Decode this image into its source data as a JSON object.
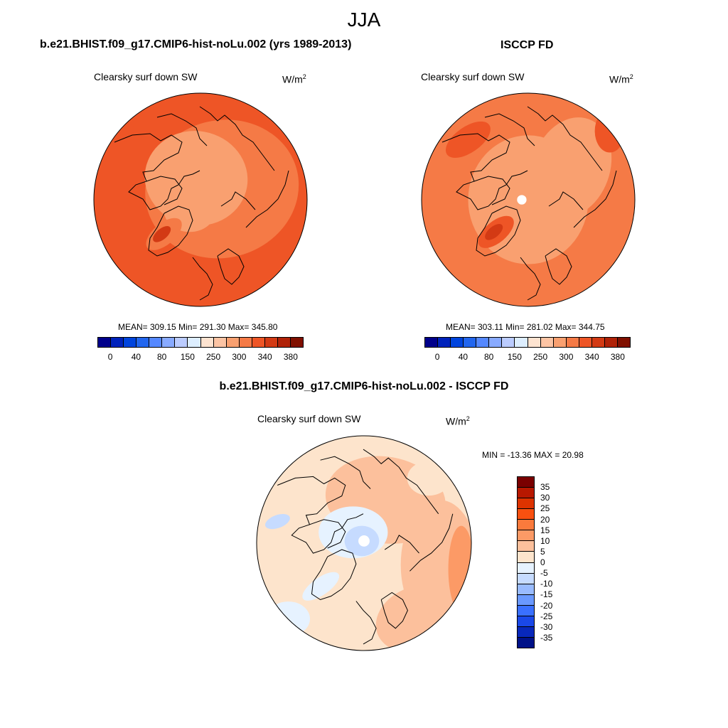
{
  "season": "JJA",
  "panels": [
    {
      "title": "b.e21.BHIST.f09_g17.CMIP6-hist-noLu.002 (yrs 1989-2013)",
      "variable": "Clearsky surf down SW",
      "units": "W/m",
      "units_sup": "2",
      "stats": "MEAN= 309.15  Min= 291.30  Max= 345.80"
    },
    {
      "title": "ISCCP FD",
      "variable": "Clearsky surf down SW",
      "units": "W/m",
      "units_sup": "2",
      "stats": "MEAN= 303.11  Min= 281.02  Max= 344.75"
    },
    {
      "title": "b.e21.BHIST.f09_g17.CMIP6-hist-noLu.002 - ISCCP FD",
      "variable": "Clearsky surf down SW",
      "units": "W/m",
      "units_sup": "2",
      "stats": "MIN = -13.36 MAX =  20.98"
    }
  ],
  "chart_data": [
    {
      "type": "heatmap",
      "projection": "north polar stereographic",
      "title": "b.e21.BHIST.f09_g17.CMIP6-hist-noLu.002 (yrs 1989-2013)",
      "variable": "Clearsky surf down SW",
      "units": "W/m2",
      "mean": 309.15,
      "min": 291.3,
      "max": 345.8,
      "colorbar": {
        "orientation": "horizontal",
        "tick_labels": [
          "0",
          "40",
          "80",
          "150",
          "250",
          "300",
          "340",
          "380"
        ],
        "colors": [
          "#00008b",
          "#0022bb",
          "#0044dd",
          "#2266ee",
          "#5588ff",
          "#88aaff",
          "#bbccff",
          "#ddeeff",
          "#fde3d0",
          "#fcc4a4",
          "#f9a070",
          "#f57a46",
          "#ee5526",
          "#d33a14",
          "#b02208",
          "#801000"
        ]
      }
    },
    {
      "type": "heatmap",
      "projection": "north polar stereographic",
      "title": "ISCCP FD",
      "variable": "Clearsky surf down SW",
      "units": "W/m2",
      "mean": 303.11,
      "min": 281.02,
      "max": 344.75,
      "colorbar": {
        "orientation": "horizontal",
        "tick_labels": [
          "0",
          "40",
          "80",
          "150",
          "250",
          "300",
          "340",
          "380"
        ],
        "colors": [
          "#00008b",
          "#0022bb",
          "#0044dd",
          "#2266ee",
          "#5588ff",
          "#88aaff",
          "#bbccff",
          "#ddeeff",
          "#fde3d0",
          "#fcc4a4",
          "#f9a070",
          "#f57a46",
          "#ee5526",
          "#d33a14",
          "#b02208",
          "#801000"
        ]
      }
    },
    {
      "type": "heatmap",
      "projection": "north polar stereographic",
      "title": "b.e21.BHIST.f09_g17.CMIP6-hist-noLu.002 - ISCCP FD",
      "variable": "Clearsky surf down SW",
      "units": "W/m2",
      "min": -13.36,
      "max": 20.98,
      "colorbar": {
        "orientation": "vertical",
        "tick_labels": [
          "35",
          "30",
          "25",
          "20",
          "15",
          "10",
          "5",
          "0",
          "-5",
          "-10",
          "-15",
          "-20",
          "-25",
          "-30",
          "-35"
        ],
        "colors": [
          "#7a0000",
          "#b81800",
          "#dd3300",
          "#f85010",
          "#fb7a3c",
          "#fc9a66",
          "#fcc09c",
          "#fde4cc",
          "#e6f2ff",
          "#c6dbff",
          "#99bbff",
          "#6a99ff",
          "#3a70ff",
          "#1a48e8",
          "#0828bb",
          "#001188"
        ]
      }
    }
  ]
}
